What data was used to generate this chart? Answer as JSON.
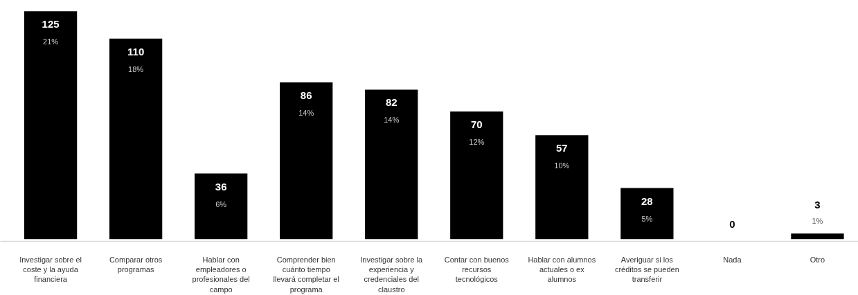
{
  "chart_data": {
    "type": "bar",
    "categories": [
      "Investigar sobre el coste y la ayuda financiera",
      "Comparar otros programas",
      "Hablar con empleadores o profesionales del campo",
      "Comprender bien cuánto tiempo llevará completar el programa",
      "Investigar sobre la experiencia y credenciales del claustro",
      "Contar con buenos recursos tecnológicos",
      "Hablar con alumnos actuales o ex alumnos",
      "Averiguar si los créditos se pueden transferir",
      "Nada",
      "Otro"
    ],
    "values": [
      125,
      110,
      36,
      86,
      82,
      70,
      57,
      28,
      0,
      3
    ],
    "value_labels": [
      "125\n21%",
      "110\n18%",
      "36\n6%",
      "86\n14%",
      "82\n14%",
      "70\n12%",
      "57\n10%",
      "28\n5%",
      "0",
      "3\n1%"
    ],
    "color": "#000000",
    "grid": false
  }
}
